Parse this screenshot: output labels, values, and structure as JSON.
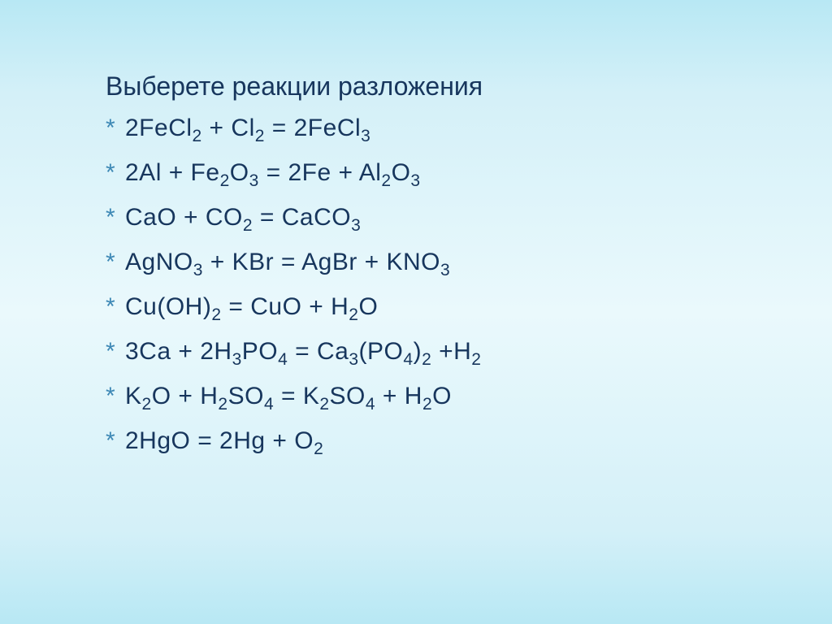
{
  "slide": {
    "title": "Выберете реакции разложения",
    "title_color": "#17365d",
    "title_fontsize": 32,
    "bullet_color": "#3d88b5",
    "text_color": "#17365d",
    "item_fontsize": 30,
    "background_gradient": [
      "#b8e8f4",
      "#d4f0f8",
      "#eaf9fc",
      "#d4f0f8",
      "#b8e8f4"
    ],
    "equations": [
      {
        "plain": "2FeCl2 + Cl2 = 2FeCl3",
        "tokens": [
          [
            "2FeCl",
            ""
          ],
          [
            "2",
            "sub"
          ],
          [
            " + Cl",
            ""
          ],
          [
            "2",
            "sub"
          ],
          [
            " = 2FeCl",
            ""
          ],
          [
            "3",
            "sub"
          ]
        ]
      },
      {
        "plain": "2Al + Fe2O3 = 2Fe + Al2O3",
        "tokens": [
          [
            "2Al + Fe",
            ""
          ],
          [
            "2",
            "sub"
          ],
          [
            "O",
            ""
          ],
          [
            "3",
            "sub"
          ],
          [
            " = 2Fe + Al",
            ""
          ],
          [
            "2",
            "sub"
          ],
          [
            "O",
            ""
          ],
          [
            "3",
            "sub"
          ]
        ]
      },
      {
        "plain": "CaO + CO2 = CaCO3",
        "tokens": [
          [
            "CaO + CO",
            ""
          ],
          [
            "2",
            "sub"
          ],
          [
            " = CaCO",
            ""
          ],
          [
            "3",
            "sub"
          ]
        ]
      },
      {
        "plain": "AgNO3 + KBr = AgBr + KNO3",
        "tokens": [
          [
            "AgNO",
            ""
          ],
          [
            "3",
            "sub"
          ],
          [
            " + KBr = AgBr + KNO",
            ""
          ],
          [
            "3",
            "sub"
          ]
        ]
      },
      {
        "plain": "Cu(OH)2 = CuO + H2O",
        "tokens": [
          [
            "Cu(OH)",
            ""
          ],
          [
            "2",
            "sub"
          ],
          [
            " = CuO + H",
            ""
          ],
          [
            "2",
            "sub"
          ],
          [
            "O",
            ""
          ]
        ]
      },
      {
        "plain": "3Ca + 2H3PO4 = Ca3(PO4)2 + H2",
        "tokens": [
          [
            "3Ca   + 2H",
            ""
          ],
          [
            "3",
            "sub"
          ],
          [
            "PO",
            ""
          ],
          [
            "4",
            "sub"
          ],
          [
            " = Ca",
            ""
          ],
          [
            "3",
            "sub"
          ],
          [
            "(PO",
            ""
          ],
          [
            "4",
            "sub"
          ],
          [
            ")",
            ""
          ],
          [
            "2",
            "sub"
          ],
          [
            " +H",
            ""
          ],
          [
            "2",
            "sub"
          ]
        ]
      },
      {
        "plain": "K2O + H2SO4 = K2SO4 + H2O",
        "tokens": [
          [
            "K",
            ""
          ],
          [
            "2",
            "sub"
          ],
          [
            "O + H",
            ""
          ],
          [
            "2",
            "sub"
          ],
          [
            "SO",
            ""
          ],
          [
            "4",
            "sub"
          ],
          [
            " = K",
            ""
          ],
          [
            "2",
            "sub"
          ],
          [
            "SO",
            ""
          ],
          [
            "4",
            "sub"
          ],
          [
            " + H",
            ""
          ],
          [
            "2",
            "sub"
          ],
          [
            "O",
            ""
          ]
        ]
      },
      {
        "plain": "2HgO = 2Hg + O2",
        "tokens": [
          [
            "2HgO = 2Hg + O",
            ""
          ],
          [
            "2",
            "sub"
          ]
        ]
      }
    ]
  }
}
